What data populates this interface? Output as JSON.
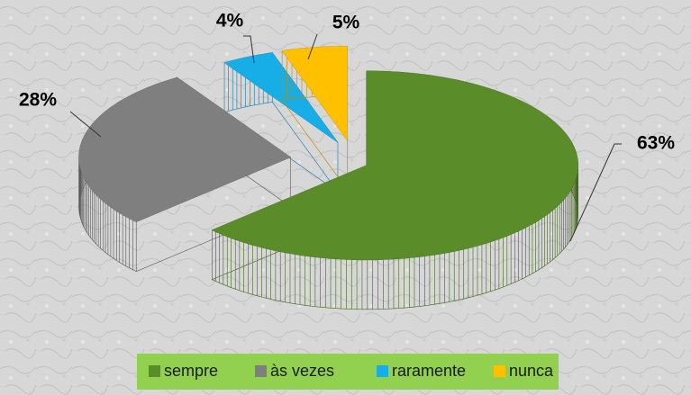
{
  "chart_data": {
    "type": "pie",
    "categories": [
      "sempre",
      "às vezes",
      "raramente",
      "nunca"
    ],
    "values": [
      63,
      28,
      4,
      5
    ],
    "value_labels": [
      "63%",
      "28%",
      "4%",
      "5%"
    ],
    "colors": [
      "#5b8c2a",
      "#7f7f7f",
      "#17aee8",
      "#ffc000"
    ],
    "legend": "bottom"
  }
}
